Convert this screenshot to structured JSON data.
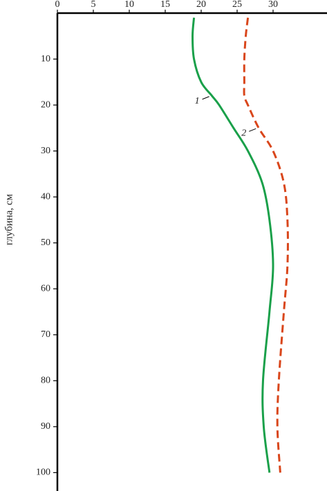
{
  "chart_data": {
    "type": "line",
    "y_label": "глубина, см",
    "depth": [
      1,
      5,
      10,
      15,
      18,
      20,
      25,
      30,
      37,
      45,
      55,
      65,
      80,
      90,
      100
    ],
    "series": [
      {
        "name": "1",
        "color": "#1aa04a",
        "dash": false,
        "values": [
          19,
          18.8,
          19,
          20,
          21.5,
          22.5,
          24.5,
          26.5,
          28.5,
          29.5,
          30,
          29.5,
          28.6,
          28.7,
          29.5
        ]
      },
      {
        "name": "2",
        "color": "#d9461b",
        "dash": true,
        "values": [
          26.5,
          26.2,
          26,
          26,
          26,
          26.5,
          28,
          30,
          31.5,
          32,
          32,
          31.5,
          30.8,
          30.6,
          31
        ]
      }
    ],
    "xlim": [
      0,
      37.5
    ],
    "xticks": [
      0,
      5,
      10,
      15,
      20,
      25,
      30
    ],
    "ylim": [
      0,
      104
    ],
    "yticks": [
      10,
      20,
      30,
      40,
      50,
      60,
      70,
      80,
      90,
      100
    ]
  }
}
